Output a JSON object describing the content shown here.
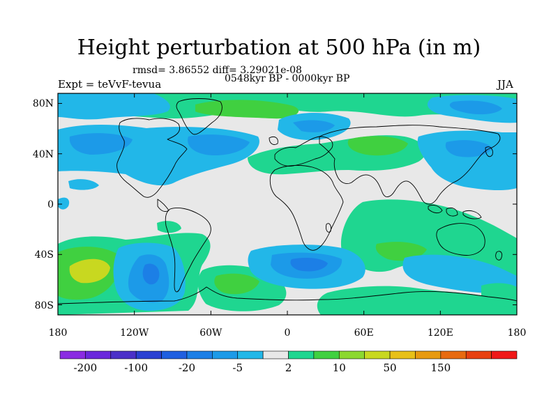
{
  "title": "Height perturbation at 500 hPa (in m)",
  "stats": "rmsd= 3.86552 diff= 3.29021e-08",
  "experiment": "Expt = teVvF-tevua",
  "period": "0548kyr BP - 0000kyr BP",
  "season": "JJA",
  "lat_ticks": [
    {
      "label": "80N",
      "value": 80
    },
    {
      "label": "40N",
      "value": 40
    },
    {
      "label": "0",
      "value": 0
    },
    {
      "label": "40S",
      "value": -40
    },
    {
      "label": "80S",
      "value": -80
    }
  ],
  "lon_ticks": [
    {
      "label": "180",
      "value": -180
    },
    {
      "label": "120W",
      "value": -120
    },
    {
      "label": "60W",
      "value": -60
    },
    {
      "label": "0",
      "value": 0
    },
    {
      "label": "60E",
      "value": 60
    },
    {
      "label": "120E",
      "value": 120
    },
    {
      "label": "180",
      "value": 180
    }
  ],
  "colorbar": {
    "colors": [
      "#8a2be2",
      "#6a28dc",
      "#4b30c8",
      "#2a40d2",
      "#1f5fe0",
      "#1c7fe6",
      "#1c9ae8",
      "#22b7e8",
      "#e8e8e8",
      "#1fd690",
      "#40d040",
      "#8cd830",
      "#c8d820",
      "#e8c018",
      "#e89a10",
      "#e86a10",
      "#e84010",
      "#f01818"
    ],
    "labels": [
      {
        "text": "-200",
        "boundary": 1
      },
      {
        "text": "-100",
        "boundary": 3
      },
      {
        "text": "-20",
        "boundary": 5
      },
      {
        "text": "-5",
        "boundary": 7
      },
      {
        "text": "2",
        "boundary": 9
      },
      {
        "text": "10",
        "boundary": 11
      },
      {
        "text": "50",
        "boundary": 13
      },
      {
        "text": "150",
        "boundary": 15
      }
    ]
  },
  "field_colors": {
    "background": "#e8e8e8",
    "neg_light": "#22b7e8",
    "neg_mid": "#1c9ae8",
    "neg_strong": "#1c7fe6",
    "pos_light": "#1fd690",
    "pos_mid": "#40d040",
    "pos_strong": "#c8d820"
  }
}
